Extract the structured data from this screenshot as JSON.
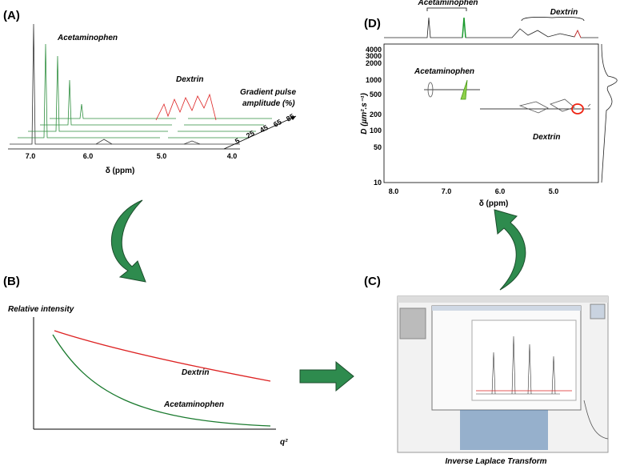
{
  "panel_a": {
    "label": "(A)",
    "compound_1": "Acetaminophen",
    "compound_2": "Dextrin",
    "gradient_title": [
      "Gradient pulse",
      "amplitude (%)"
    ],
    "gradient_levels": [
      "5",
      "25",
      "45",
      "65",
      "85"
    ],
    "x_ticks": [
      "7.0",
      "6.0",
      "5.0",
      "4.0"
    ],
    "x_label": "δ (ppm)"
  },
  "panel_b": {
    "label": "(B)",
    "y_label": "Relative intensity",
    "x_label": "q²",
    "curve_1": "Dextrin",
    "curve_2": "Acetaminophen"
  },
  "panel_c": {
    "label": "(C)",
    "caption": "Inverse Laplace Transform"
  },
  "panel_d": {
    "label": "(D)",
    "top_label_1": "Acetaminophen",
    "top_label_2": "Dextrin",
    "y_label": "D (µm².s⁻¹)",
    "y_ticks": [
      "4000",
      "3000",
      "2000",
      "1000",
      "500",
      "200",
      "100",
      "50",
      "10"
    ],
    "x_ticks": [
      "8.0",
      "7.0",
      "6.0",
      "5.0"
    ],
    "x_label": "δ (ppm)",
    "compound_1": "Acetaminophen",
    "compound_2": "Dextrin"
  }
}
